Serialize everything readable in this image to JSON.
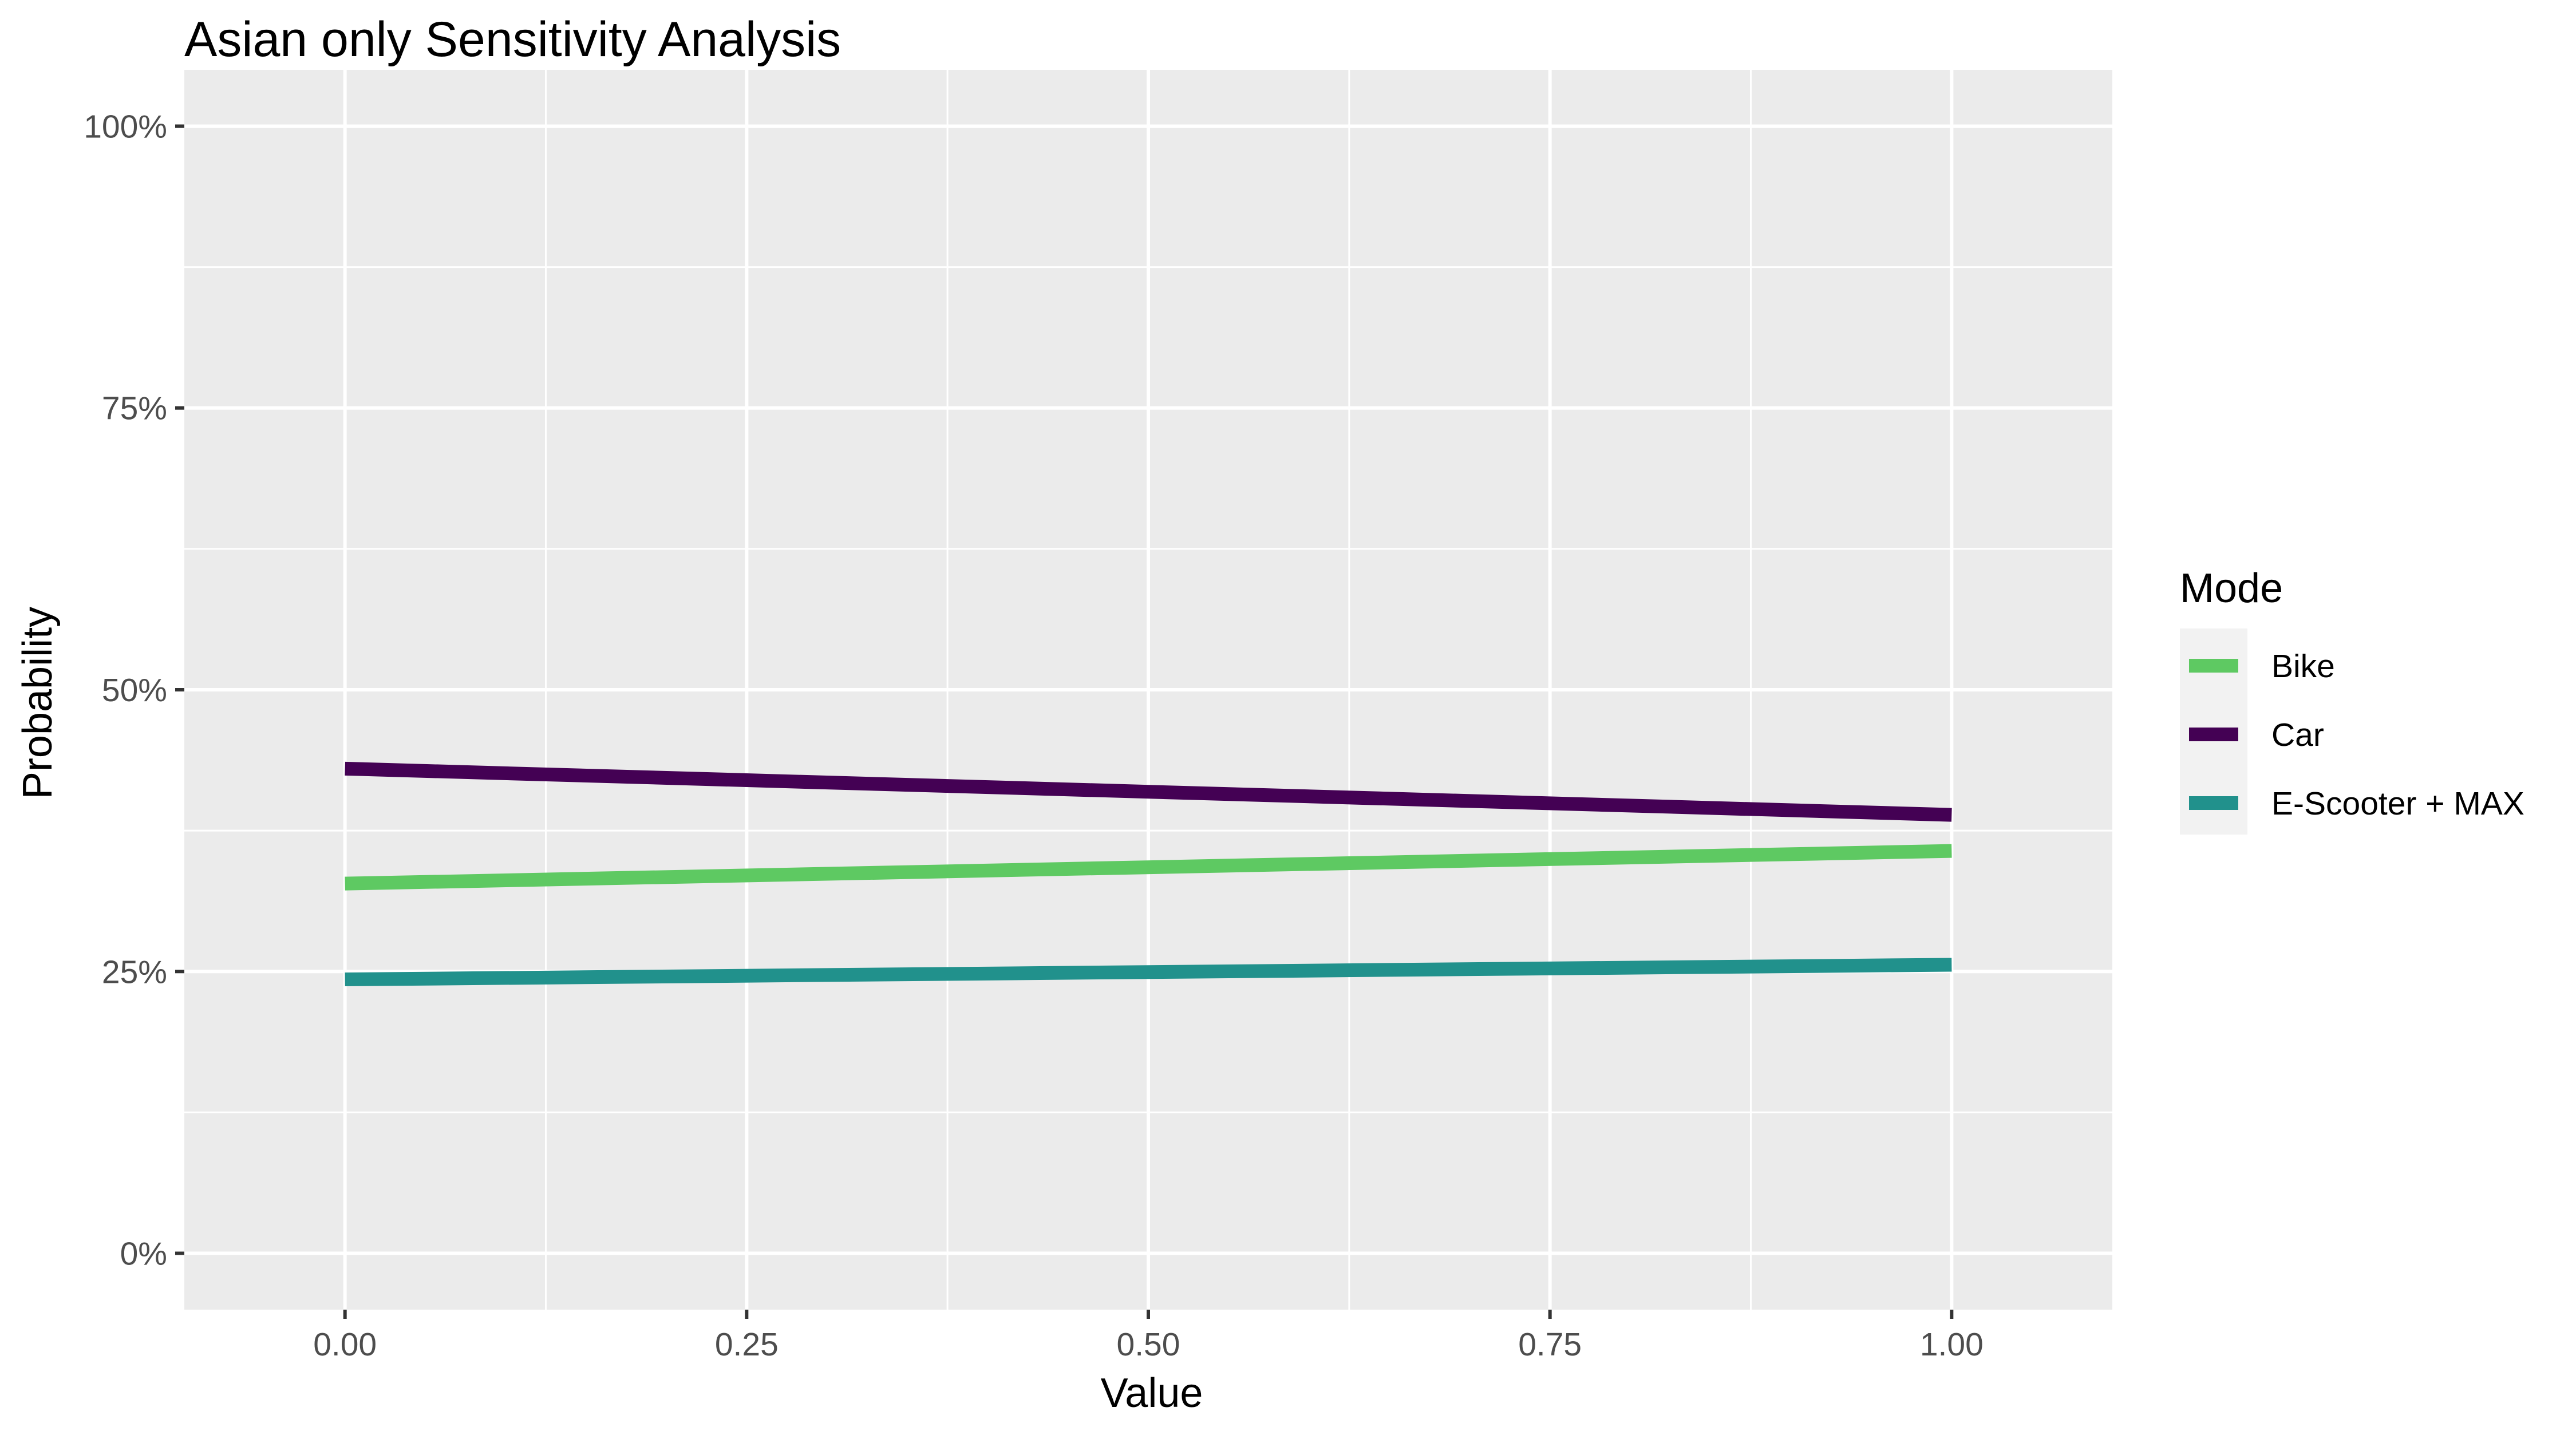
{
  "chart_data": {
    "type": "line",
    "title": "Asian only Sensitivity Analysis",
    "xlabel": "Value",
    "ylabel": "Probability",
    "xlim": [
      -0.1,
      1.1
    ],
    "ylim": [
      -5,
      105
    ],
    "x_ticks": [
      "0.00",
      "0.25",
      "0.50",
      "0.75",
      "1.00"
    ],
    "y_ticks": [
      "0%",
      "25%",
      "50%",
      "75%",
      "100%"
    ],
    "grid": true,
    "legend": {
      "title": "Mode",
      "position": "right"
    },
    "x": [
      0,
      1
    ],
    "series": [
      {
        "name": "Bike",
        "color": "#5ec962",
        "values": [
          32.8,
          35.7
        ]
      },
      {
        "name": "Car",
        "color": "#440154",
        "values": [
          43.0,
          38.9
        ]
      },
      {
        "name": "E-Scooter + MAX",
        "color": "#21918c",
        "values": [
          24.3,
          25.6
        ]
      }
    ]
  }
}
